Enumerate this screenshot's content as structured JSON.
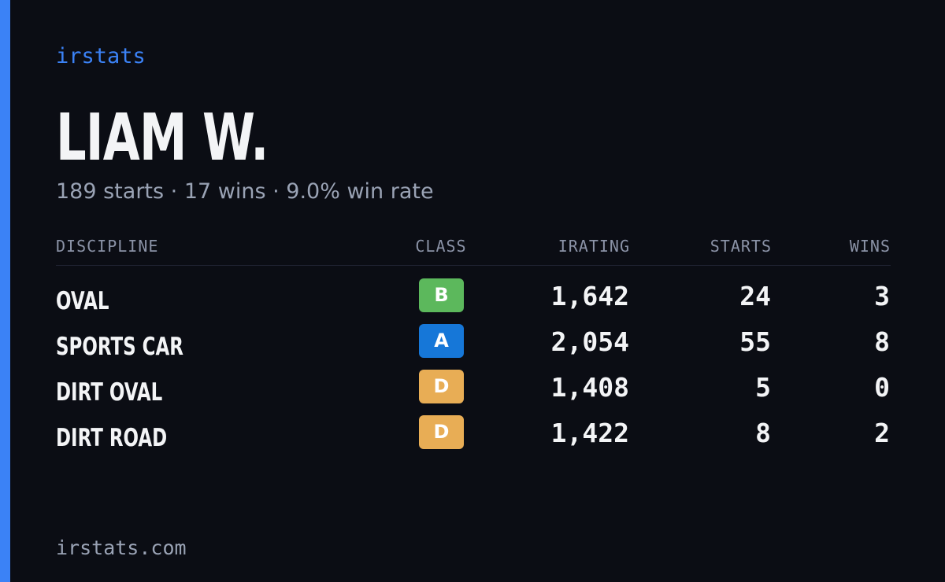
{
  "brand": "irstats",
  "driver": {
    "name": "LIAM W.",
    "summary": "189 starts · 17 wins · 9.0% win rate"
  },
  "table": {
    "headers": [
      "DISCIPLINE",
      "CLASS",
      "IRATING",
      "STARTS",
      "WINS"
    ],
    "rows": [
      [
        "OVAL",
        "B",
        "1,642",
        "24",
        "3"
      ],
      [
        "SPORTS CAR",
        "A",
        "2,054",
        "55",
        "8"
      ],
      [
        "DIRT OVAL",
        "D",
        "1,408",
        "5",
        "0"
      ],
      [
        "DIRT ROAD",
        "D",
        "1,422",
        "8",
        "2"
      ]
    ]
  },
  "footer": "irstats.com"
}
